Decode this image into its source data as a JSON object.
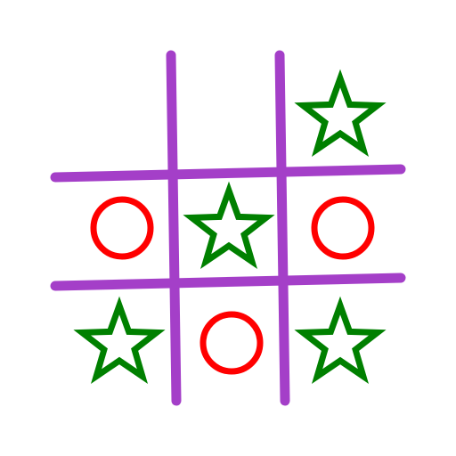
{
  "board": {
    "colors": {
      "grid": "#a43fc8",
      "o_mark": "#ff0000",
      "star_mark": "#008000",
      "background": "#ffffff"
    },
    "cells": [
      [
        "",
        "",
        "star"
      ],
      [
        "o",
        "star",
        "o"
      ],
      [
        "star",
        "o",
        "star"
      ]
    ]
  }
}
